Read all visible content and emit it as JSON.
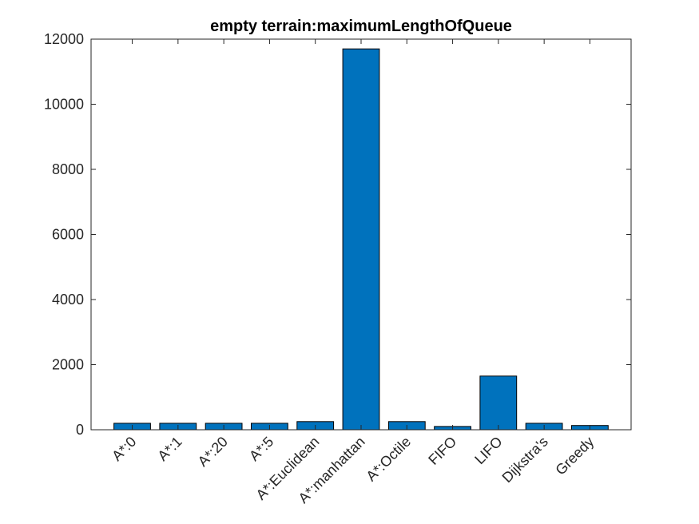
{
  "chart_data": {
    "type": "bar",
    "title": "empty terrain:maximumLengthOfQueue",
    "xlabel": "",
    "ylabel": "",
    "categories": [
      "A*:0",
      "A*:1",
      "A*:20",
      "A*:5",
      "A*:Euclidean",
      "A*:manhattan",
      "A*:Octile",
      "FIFO",
      "LIFO",
      "Dijkstra's",
      "Greedy"
    ],
    "values": [
      200,
      200,
      200,
      200,
      250,
      11700,
      250,
      100,
      1650,
      200,
      130
    ],
    "ylim": [
      0,
      12000
    ],
    "yticks": [
      0,
      2000,
      4000,
      6000,
      8000,
      10000,
      12000
    ],
    "grid": false,
    "bar_color": "#0072BD",
    "edge_color": "#000000"
  }
}
